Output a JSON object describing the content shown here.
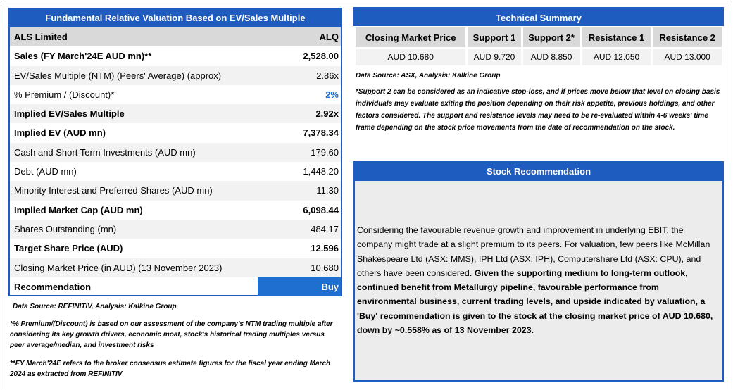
{
  "valuation": {
    "title": "Fundamental Relative Valuation Based on EV/Sales Multiple",
    "header": [
      "ALS Limited",
      "ALQ"
    ],
    "rows": [
      [
        "Sales (FY March'24E AUD mn)**",
        "2,528.00"
      ],
      [
        "EV/Sales Multiple (NTM)  (Peers' Average) (approx)",
        "2.86x"
      ],
      [
        "% Premium / (Discount)*",
        "2%"
      ],
      [
        "Implied EV/Sales Multiple",
        "2.92x"
      ],
      [
        "Implied EV (AUD mn)",
        "7,378.34"
      ],
      [
        "Cash and Short Term Investments (AUD mn)",
        "179.60"
      ],
      [
        "Debt (AUD mn)",
        "1,448.20"
      ],
      [
        "Minority Interest and Preferred Shares (AUD mn)",
        "11.30"
      ],
      [
        "Implied Market Cap (AUD mn)",
        "6,098.44"
      ],
      [
        "Shares Outstanding (mn)",
        "484.17"
      ],
      [
        "Target Share Price (AUD)",
        "12.596"
      ],
      [
        "Closing Market Price (in AUD) (13 November 2023)",
        "10.680"
      ],
      [
        "Recommendation",
        "Buy"
      ]
    ],
    "source": "Data Source: REFINITIV, Analysis: Kalkine Group",
    "notes": [
      "*% Premium/(Discount) is based on our assessment of the company's NTM trading multiple after considering its key growth drivers, economic moat, stock's historical trading multiples versus peer average/median, and investment risks",
      "**FY March'24E refers to the broker consensus estimate figures for the fiscal year ending March 2024  as extracted from REFINITIV"
    ]
  },
  "technical": {
    "title": "Technical Summary",
    "headers": [
      "Closing Market Price",
      "Support 1",
      "Support 2*",
      "Resistance 1",
      "Resistance 2"
    ],
    "values": [
      "AUD 10.680",
      "AUD 9.720",
      "AUD 8.850",
      "AUD 12.050",
      "AUD 13.000"
    ],
    "source": "Data Source: ASX, Analysis: Kalkine Group",
    "note": "*Support 2 can be considered as an indicative stop-loss, and if prices move below that level on closing basis individuals may evaluate exiting the position depending on their risk appetite, previous holdings, and other factors considered. The support and resistance levels may need to be re-evaluated within 4-6 weeks' time frame depending on the stock price movements from the date of recommendation on the stock."
  },
  "recommendation": {
    "title": "Stock Recommendation",
    "text": "Considering the favourable revenue growth and improvement in underlying EBIT, the company might trade at a slight premium to its peers. For valuation, few peers like McMillan Shakespeare Ltd (ASX: MMS), IPH Ltd (ASX: IPH), Computershare Ltd (ASX: CPU), and others have been considered.",
    "emphasis": "Given the supporting medium to long-term outlook, continued benefit from Metallurgy pipeline, favourable performance from environmental business, current trading levels, and upside indicated by valuation, a 'Buy' recommendation is given to the stock at the closing market price of AUD 10.680, down by ~0.558% as of 13 November 2023."
  }
}
